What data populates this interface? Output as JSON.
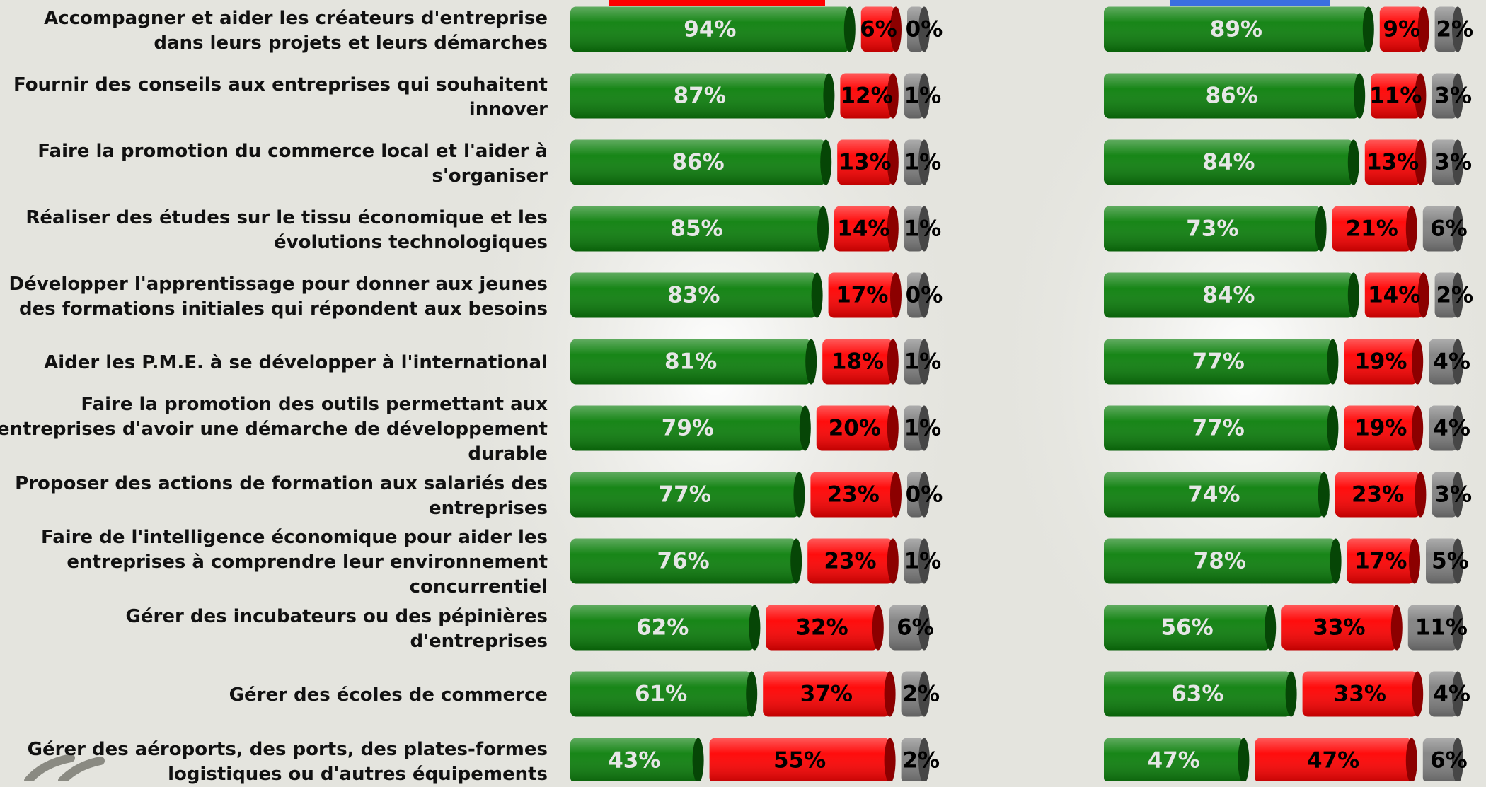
{
  "chart_data": [
    {
      "type": "bar",
      "categories": [
        "Accompagner et aider les créateurs d'entreprise dans leurs projets et leurs démarches",
        "Fournir des conseils aux entreprises qui souhaitent innover",
        "Faire la promotion du commerce local et l'aider à s'organiser",
        "Réaliser des études sur le tissu économique et les évolutions technologiques",
        "Développer l'apprentissage pour donner aux jeunes des formations initiales qui répondent aux besoins",
        "Aider les P.M.E. à se développer à l'international",
        "Faire la promotion des outils permettant aux entreprises d'avoir une démarche de développement durable",
        "Proposer des actions de formation aux salariés des entreprises",
        "Faire de l'intelligence économique pour aider les entreprises à comprendre leur environnement concurrentiel",
        "Gérer des incubateurs ou des pépinières d'entreprises",
        "Gérer des écoles de commerce",
        "Gérer des aéroports, des ports, des plates-formes logistiques ou d'autres équipements"
      ],
      "series": [
        {
          "color": "#0b7f0b",
          "values": [
            94,
            87,
            86,
            85,
            83,
            81,
            79,
            77,
            76,
            62,
            61,
            43
          ],
          "value_labels": [
            "94%",
            "87%",
            "86%",
            "85%",
            "83%",
            "81%",
            "79%",
            "77%",
            "76%",
            "62%",
            "61%",
            "43%"
          ]
        },
        {
          "color": "#ff0000",
          "values": [
            6,
            12,
            13,
            14,
            17,
            18,
            20,
            23,
            23,
            32,
            37,
            55
          ],
          "value_labels": [
            "6%",
            "12%",
            "13%",
            "14%",
            "17%",
            "18%",
            "20%",
            "23%",
            "23%",
            "32%",
            "37%",
            "55%"
          ]
        },
        {
          "color": "#808080",
          "values": [
            0,
            1,
            1,
            1,
            0,
            1,
            1,
            0,
            1,
            6,
            2,
            2
          ],
          "value_labels": [
            "0%",
            "1%",
            "1%",
            "1%",
            "0%",
            "1%",
            "1%",
            "0%",
            "1%",
            "6%",
            "2%",
            "2%"
          ]
        }
      ]
    },
    {
      "type": "bar",
      "series": [
        {
          "color": "#0b7f0b",
          "values": [
            89,
            86,
            84,
            73,
            84,
            77,
            77,
            74,
            78,
            56,
            63,
            47
          ],
          "value_labels": [
            "89%",
            "86%",
            "84%",
            "73%",
            "84%",
            "77%",
            "77%",
            "74%",
            "78%",
            "56%",
            "63%",
            "47%"
          ]
        },
        {
          "color": "#ff0000",
          "values": [
            9,
            11,
            13,
            21,
            14,
            19,
            19,
            23,
            17,
            33,
            33,
            47
          ],
          "value_labels": [
            "9%",
            "11%",
            "13%",
            "21%",
            "14%",
            "19%",
            "19%",
            "23%",
            "17%",
            "33%",
            "33%",
            "47%"
          ]
        },
        {
          "color": "#808080",
          "values": [
            2,
            3,
            3,
            6,
            2,
            4,
            4,
            3,
            5,
            11,
            4,
            6
          ],
          "value_labels": [
            "2%",
            "3%",
            "3%",
            "6%",
            "2%",
            "4%",
            "4%",
            "3%",
            "5%",
            "11%",
            "4%",
            "6%"
          ]
        }
      ]
    }
  ]
}
